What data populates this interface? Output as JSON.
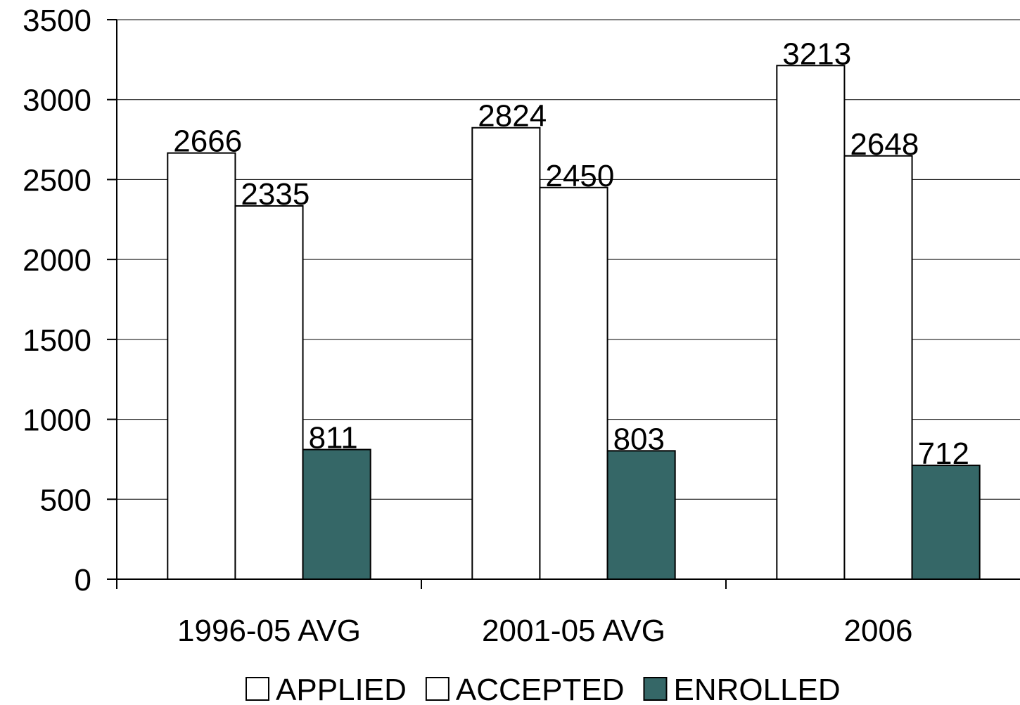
{
  "chart_data": {
    "type": "bar",
    "categories": [
      "1996-05 AVG",
      "2001-05 AVG",
      "2006"
    ],
    "series": [
      {
        "name": "APPLIED",
        "color": "#ffffff",
        "values": [
          2666,
          2824,
          3213
        ]
      },
      {
        "name": "ACCEPTED",
        "color": "#ffffff",
        "values": [
          2335,
          2450,
          2648
        ]
      },
      {
        "name": "ENROLLED",
        "color": "#356767",
        "values": [
          811,
          803,
          712
        ]
      }
    ],
    "ylim": [
      0,
      3500
    ],
    "yticks": [
      0,
      500,
      1000,
      1500,
      2000,
      2500,
      3000,
      3500
    ],
    "grid": true,
    "legend": "bottom"
  }
}
